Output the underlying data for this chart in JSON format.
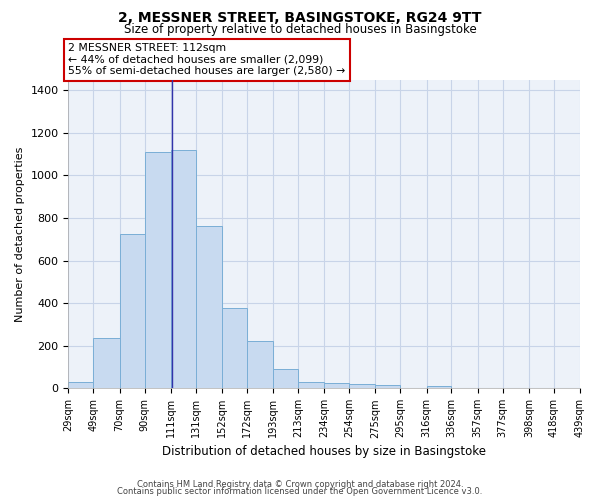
{
  "title": "2, MESSNER STREET, BASINGSTOKE, RG24 9TT",
  "subtitle": "Size of property relative to detached houses in Basingstoke",
  "xlabel": "Distribution of detached houses by size in Basingstoke",
  "ylabel": "Number of detached properties",
  "footnote1": "Contains HM Land Registry data © Crown copyright and database right 2024.",
  "footnote2": "Contains public sector information licensed under the Open Government Licence v3.0.",
  "bar_color": "#c8daf0",
  "bar_edge_color": "#7aaed6",
  "vline_color": "#3333aa",
  "grid_color": "#c8d4e8",
  "background_color": "#edf2f9",
  "annotation_box_color": "#cc0000",
  "annotation_line1": "2 MESSNER STREET: 112sqm",
  "annotation_line2": "← 44% of detached houses are smaller (2,099)",
  "annotation_line3": "55% of semi-detached houses are larger (2,580) →",
  "property_size": 112,
  "bin_edges": [
    29,
    49,
    70,
    90,
    111,
    131,
    152,
    172,
    193,
    213,
    234,
    254,
    275,
    295,
    316,
    336,
    357,
    377,
    398,
    418,
    439
  ],
  "bar_heights": [
    30,
    235,
    725,
    1110,
    1120,
    760,
    375,
    220,
    90,
    30,
    25,
    20,
    15,
    0,
    10,
    0,
    0,
    0,
    0,
    0
  ],
  "ylim": [
    0,
    1450
  ],
  "yticks": [
    0,
    200,
    400,
    600,
    800,
    1000,
    1200,
    1400
  ],
  "tick_labels": [
    "29sqm",
    "49sqm",
    "70sqm",
    "90sqm",
    "111sqm",
    "131sqm",
    "152sqm",
    "172sqm",
    "193sqm",
    "213sqm",
    "234sqm",
    "254sqm",
    "275sqm",
    "295sqm",
    "316sqm",
    "336sqm",
    "357sqm",
    "377sqm",
    "398sqm",
    "418sqm",
    "439sqm"
  ]
}
